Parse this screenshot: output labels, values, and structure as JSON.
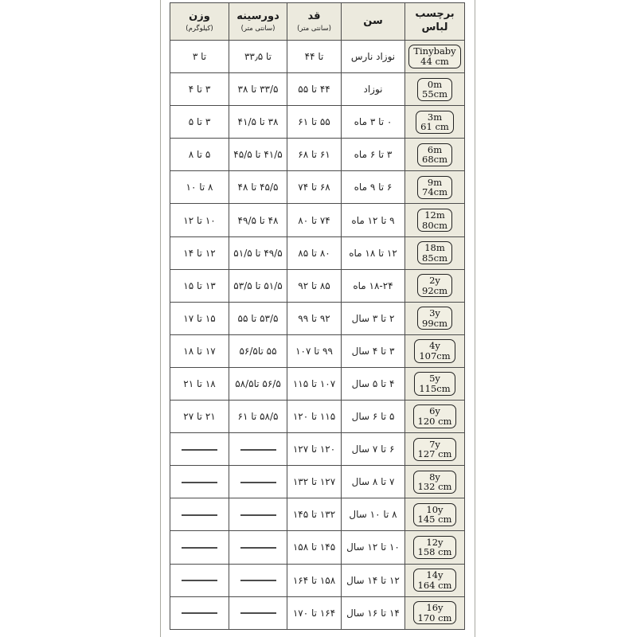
{
  "colors": {
    "page_bg": "#ffffff",
    "panel_bg": "#eceade",
    "badge_bg": "#f1efe3",
    "grid_line": "#4c4c4c",
    "frame_line": "#a9a9a1",
    "text": "#1c1c1c"
  },
  "chart_data": {
    "type": "table",
    "title": "",
    "direction": "rtl",
    "legend_position": "none",
    "columns": [
      {
        "id": "label",
        "title": "برچسب لباس",
        "subtitle": ""
      },
      {
        "id": "age",
        "title": "سن",
        "subtitle": ""
      },
      {
        "id": "height",
        "title": "قد",
        "subtitle": "(سانتی متر)"
      },
      {
        "id": "chest",
        "title": "دورسینه",
        "subtitle": "(سانتی متر)"
      },
      {
        "id": "weight",
        "title": "وزن",
        "subtitle": "(کیلوگرم)"
      }
    ],
    "rows": [
      {
        "label_line1": "Tinybaby",
        "label_line2": "44 cm",
        "age": "نوزاد نارس",
        "height": "تا ۴۴",
        "chest": "تا ۳۳٫۵",
        "weight": "تا ۳"
      },
      {
        "label_line1": "0m",
        "label_line2": "55cm",
        "age": "نوزاد",
        "height": "۴۴ تا ۵۵",
        "chest": "۳۳/۵ تا ۳۸",
        "weight": "۳ تا ۴"
      },
      {
        "label_line1": "3m",
        "label_line2": "61 cm",
        "age": "۰ تا ۳ ماه",
        "height": "۵۵ تا ۶۱",
        "chest": "۳۸ تا ۴۱/۵",
        "weight": "۳ تا ۵"
      },
      {
        "label_line1": "6m",
        "label_line2": "68cm",
        "age": "۳ تا ۶ ماه",
        "height": "۶۱ تا ۶۸",
        "chest": "۴۱/۵ تا ۴۵/۵",
        "weight": "۵ تا ۸"
      },
      {
        "label_line1": "9m",
        "label_line2": "74cm",
        "age": "۶ تا ۹ ماه",
        "height": "۶۸ تا ۷۴",
        "chest": "۴۵/۵ تا ۴۸",
        "weight": "۸ تا ۱۰"
      },
      {
        "label_line1": "12m",
        "label_line2": "80cm",
        "age": "۹ تا ۱۲ ماه",
        "height": "۷۴ تا ۸۰",
        "chest": "۴۸ تا ۴۹/۵",
        "weight": "۱۰ تا ۱۲"
      },
      {
        "label_line1": "18m",
        "label_line2": "85cm",
        "age": "۱۲ تا ۱۸ ماه",
        "height": "۸۰ تا ۸۵",
        "chest": "۴۹/۵ تا ۵۱/۵",
        "weight": "۱۲ تا ۱۴"
      },
      {
        "label_line1": "2y",
        "label_line2": "92cm",
        "age": "۱۸-۲۴ ماه",
        "height": "۸۵ تا ۹۲",
        "chest": "۵۱/۵ تا ۵۳/۵",
        "weight": "۱۳ تا ۱۵"
      },
      {
        "label_line1": "3y",
        "label_line2": "99cm",
        "age": "۲ تا ۳ سال",
        "height": "۹۲ تا ۹۹",
        "chest": "۵۳/۵ تا ۵۵",
        "weight": "۱۵ تا ۱۷"
      },
      {
        "label_line1": "4y",
        "label_line2": "107cm",
        "age": "۳ تا ۴ سال",
        "height": "۹۹ تا ۱۰۷",
        "chest": "۵۵ تا۵۶/۵",
        "weight": "۱۷ تا ۱۸"
      },
      {
        "label_line1": "5y",
        "label_line2": "115cm",
        "age": "۴ تا ۵ سال",
        "height": "۱۰۷ تا ۱۱۵",
        "chest": "۵۶/۵ تا۵۸/۵",
        "weight": "۱۸ تا ۲۱"
      },
      {
        "label_line1": "6y",
        "label_line2": "120 cm",
        "age": "۵ تا ۶ سال",
        "height": "۱۱۵ تا ۱۲۰",
        "chest": "۵۸/۵ تا ۶۱",
        "weight": "۲۱ تا ۲۷"
      },
      {
        "label_line1": "7y",
        "label_line2": "127 cm",
        "age": "۶ تا ۷ سال",
        "height": "۱۲۰ تا ۱۲۷",
        "chest": "",
        "weight": ""
      },
      {
        "label_line1": "8y",
        "label_line2": "132 cm",
        "age": "۷ تا ۸ سال",
        "height": "۱۲۷ تا ۱۳۲",
        "chest": "",
        "weight": ""
      },
      {
        "label_line1": "10y",
        "label_line2": "145 cm",
        "age": "۸ تا ۱۰ سال",
        "height": "۱۳۲ تا ۱۴۵",
        "chest": "",
        "weight": ""
      },
      {
        "label_line1": "12y",
        "label_line2": "158 cm",
        "age": "۱۰ تا ۱۲ سال",
        "height": "۱۴۵ تا ۱۵۸",
        "chest": "",
        "weight": ""
      },
      {
        "label_line1": "14y",
        "label_line2": "164 cm",
        "age": "۱۲ تا ۱۴ سال",
        "height": "۱۵۸ تا ۱۶۴",
        "chest": "",
        "weight": ""
      },
      {
        "label_line1": "16y",
        "label_line2": "170 cm",
        "age": "۱۴ تا ۱۶ سال",
        "height": "۱۶۴ تا ۱۷۰",
        "chest": "",
        "weight": ""
      }
    ]
  }
}
